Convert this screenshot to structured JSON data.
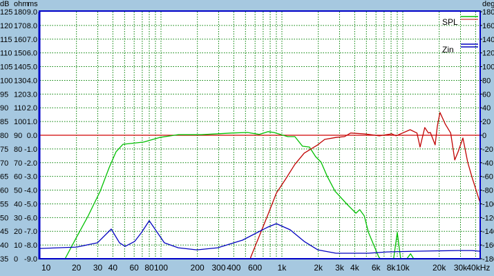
{
  "chart_data": {
    "type": "line",
    "x_scale": "log",
    "xlim": [
      10,
      43500
    ],
    "x_unit": "kHz",
    "x_tick_labels": [
      {
        "f": 10,
        "label": "10"
      },
      {
        "f": 20,
        "label": "20"
      },
      {
        "f": 30,
        "label": "30"
      },
      {
        "f": 40,
        "label": "40"
      },
      {
        "f": 60,
        "label": "60"
      },
      {
        "f": 80,
        "label": "80"
      },
      {
        "f": 100,
        "label": "100"
      },
      {
        "f": 200,
        "label": "200"
      },
      {
        "f": 300,
        "label": "300"
      },
      {
        "f": 400,
        "label": "400"
      },
      {
        "f": 600,
        "label": "600"
      },
      {
        "f": 1000,
        "label": "1k"
      },
      {
        "f": 2000,
        "label": "2k"
      },
      {
        "f": 3000,
        "label": "3k"
      },
      {
        "f": 4000,
        "label": "4k"
      },
      {
        "f": 6000,
        "label": "6k"
      },
      {
        "f": 8000,
        "label": "8k"
      },
      {
        "f": 10000,
        "label": "10k"
      },
      {
        "f": 20000,
        "label": "20k"
      },
      {
        "f": 30000,
        "label": "30k"
      },
      {
        "f": 40000,
        "label": "40kHz"
      }
    ],
    "left_axes": {
      "units": [
        "dB",
        "ohm",
        "ms"
      ],
      "dB": [
        125,
        120,
        115,
        110,
        105,
        100,
        95,
        90,
        85,
        80,
        75,
        70,
        65,
        60,
        55,
        50,
        45,
        40,
        35
      ],
      "ohm": [
        180,
        170,
        160,
        150,
        140,
        130,
        120,
        110,
        100,
        90,
        80,
        70,
        60,
        50,
        40,
        30,
        20,
        10,
        0
      ],
      "ms": [
        "9.0",
        "8.0",
        "7.0",
        "6.0",
        "5.0",
        "4.0",
        "3.0",
        "2.0",
        "1.0",
        "0.0",
        "-1.0",
        "-2.0",
        "-3.0",
        "-4.0",
        "-5.0",
        "-6.0",
        "-7.0",
        "-8.0",
        "-9.0"
      ]
    },
    "ylim_db": [
      35,
      125
    ],
    "ylim_ohm": [
      0,
      180
    ],
    "right_axis": {
      "unit": "deg",
      "ticks": [
        180,
        160,
        140,
        120,
        100,
        80,
        60,
        40,
        20,
        0,
        -20,
        -40,
        -60,
        -80,
        -100,
        -120,
        -140,
        -160,
        -180
      ]
    },
    "grid": true,
    "reference_line_db": 80,
    "legend": {
      "position": "top-right",
      "entries": [
        {
          "label": "SPL",
          "colors": [
            "#00c000",
            "#c00000"
          ]
        },
        {
          "label": "Zin",
          "colors": [
            "#0000c0",
            "#0000c0"
          ]
        }
      ]
    },
    "colors": {
      "background": "#a6c8e0",
      "frame": "#0000c8",
      "grid": "#008000",
      "reference": "#d00000"
    },
    "series": [
      {
        "legend": "SPL",
        "color": "#00c000",
        "axis": "dB",
        "points": [
          [
            16.1,
            35
          ],
          [
            20.1,
            43
          ],
          [
            25,
            50.6
          ],
          [
            31.4,
            59.6
          ],
          [
            37.3,
            68.2
          ],
          [
            42.5,
            74
          ],
          [
            48.5,
            76.7
          ],
          [
            72,
            77.5
          ],
          [
            97.5,
            79.2
          ],
          [
            139,
            80.2
          ],
          [
            215,
            80.2
          ],
          [
            383,
            80.8
          ],
          [
            520,
            81
          ],
          [
            650,
            80.3
          ],
          [
            770,
            81.3
          ],
          [
            860,
            81
          ],
          [
            1120,
            79.5
          ],
          [
            1280,
            79.5
          ],
          [
            1480,
            76
          ],
          [
            1690,
            75.7
          ],
          [
            1900,
            72.2
          ],
          [
            2110,
            70.2
          ],
          [
            2360,
            65.2
          ],
          [
            2750,
            59.6
          ],
          [
            3500,
            54.6
          ],
          [
            4100,
            51.6
          ],
          [
            4400,
            52.9
          ],
          [
            4800,
            50.6
          ],
          [
            5200,
            44.6
          ],
          [
            6300,
            35.8
          ],
          [
            6500,
            35
          ],
          [
            8400,
            35
          ],
          [
            9000,
            44.6
          ],
          [
            9600,
            35
          ],
          [
            10800,
            35
          ],
          [
            11600,
            36.8
          ],
          [
            12300,
            35
          ],
          [
            43500,
            35
          ]
        ]
      },
      {
        "legend": "SPL",
        "color": "#c00000",
        "axis": "dB",
        "points": [
          [
            10,
            35
          ],
          [
            550,
            35
          ],
          [
            552,
            35.5
          ],
          [
            760,
            50.6
          ],
          [
            900,
            58.9
          ],
          [
            1070,
            63.9
          ],
          [
            1280,
            69.4
          ],
          [
            1530,
            73.5
          ],
          [
            1980,
            76.5
          ],
          [
            2260,
            78.5
          ],
          [
            2800,
            79.2
          ],
          [
            3300,
            79.5
          ],
          [
            3700,
            80.8
          ],
          [
            4800,
            80.5
          ],
          [
            6400,
            79.8
          ],
          [
            8100,
            80.5
          ],
          [
            8800,
            79.8
          ],
          [
            11500,
            82
          ],
          [
            13100,
            80.8
          ],
          [
            13900,
            75.7
          ],
          [
            15200,
            82.8
          ],
          [
            16300,
            80.8
          ],
          [
            16900,
            81
          ],
          [
            18500,
            76.5
          ],
          [
            19300,
            83.3
          ],
          [
            20300,
            88.3
          ],
          [
            22500,
            84
          ],
          [
            24900,
            80.8
          ],
          [
            26900,
            71
          ],
          [
            28700,
            74
          ],
          [
            31400,
            79
          ],
          [
            34400,
            70.2
          ],
          [
            37400,
            64.6
          ],
          [
            43500,
            55.6
          ]
        ]
      },
      {
        "legend": "Zin",
        "color": "#0000c0",
        "axis": "ohm",
        "points": [
          [
            10,
            7.5
          ],
          [
            20,
            8.5
          ],
          [
            29.8,
            11.6
          ],
          [
            38.8,
            21.6
          ],
          [
            45.4,
            11.6
          ],
          [
            50.5,
            9
          ],
          [
            60.6,
            12.6
          ],
          [
            69,
            19.1
          ],
          [
            80,
            27.7
          ],
          [
            90,
            21.1
          ],
          [
            106.7,
            11.6
          ],
          [
            139,
            8
          ],
          [
            198,
            6.5
          ],
          [
            294,
            8
          ],
          [
            473,
            13.6
          ],
          [
            766,
            23.1
          ],
          [
            900,
            25.6
          ],
          [
            1170,
            21.1
          ],
          [
            1530,
            12.6
          ],
          [
            1980,
            6.5
          ],
          [
            2800,
            4
          ],
          [
            5200,
            4
          ],
          [
            7400,
            5
          ],
          [
            12500,
            5.5
          ],
          [
            28700,
            6
          ],
          [
            37400,
            6
          ],
          [
            43500,
            5.5
          ]
        ]
      }
    ]
  }
}
